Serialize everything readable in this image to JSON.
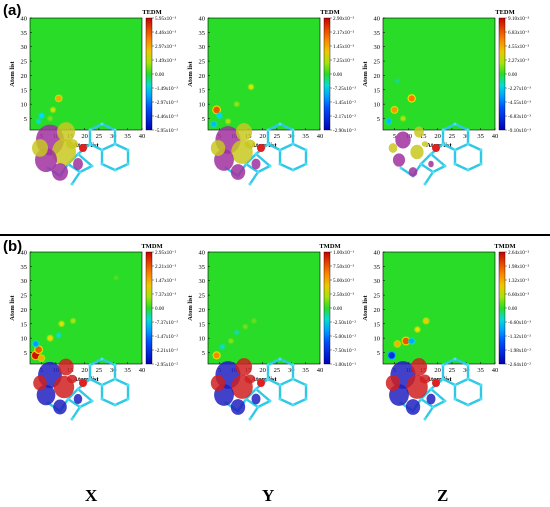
{
  "panels": {
    "a_label": "(a)",
    "b_label": "(b)"
  },
  "columns": [
    "X",
    "Y",
    "Z"
  ],
  "chart_data": [
    {
      "type": "heatmap",
      "panel": "(a)",
      "column": "X",
      "title": "TEDM",
      "xlabel": "Atom list",
      "ylabel": "Atom list",
      "xticks": [
        "5",
        "10",
        "15",
        "20",
        "25",
        "30",
        "35",
        "40"
      ],
      "yticks": [
        "5",
        "10",
        "15",
        "20",
        "25",
        "30",
        "35",
        "40"
      ],
      "xlim": [
        1,
        40
      ],
      "ylim": [
        1,
        40
      ],
      "colorbar_labels": [
        "5.95x10⁻³",
        "4.46x10⁻³",
        "2.97x10⁻³",
        "1.49x10⁻³",
        "0.00",
        "-1.49x10⁻³",
        "-2.97x10⁻³",
        "-4.46x10⁻³",
        "-5.95x10⁻³"
      ],
      "zlim": [
        -0.00595,
        0.00595
      ],
      "spots": [
        {
          "x": 11,
          "y": 12,
          "z": 0.003
        },
        {
          "x": 9,
          "y": 8,
          "z": 0.0015
        },
        {
          "x": 5,
          "y": 6,
          "z": -0.0015
        },
        {
          "x": 4,
          "y": 4,
          "z": -0.0012
        },
        {
          "x": 8,
          "y": 5,
          "z": 0.0008
        }
      ]
    },
    {
      "type": "heatmap",
      "panel": "(a)",
      "column": "Y",
      "title": "TEDM",
      "xlabel": "Atom list",
      "ylabel": "Atom list",
      "xticks": [
        "5",
        "10",
        "15",
        "20",
        "25",
        "30",
        "35",
        "40"
      ],
      "yticks": [
        "5",
        "10",
        "15",
        "20",
        "25",
        "30",
        "35",
        "40"
      ],
      "xlim": [
        1,
        40
      ],
      "ylim": [
        1,
        40
      ],
      "colorbar_labels": [
        "2.90x10⁻²",
        "2.17x10⁻²",
        "1.45x10⁻²",
        "7.25x10⁻³",
        "0.00",
        "-7.25x10⁻³",
        "-1.45x10⁻²",
        "-2.17x10⁻²",
        "-2.90x10⁻²"
      ],
      "zlim": [
        -0.029,
        0.029
      ],
      "spots": [
        {
          "x": 4,
          "y": 8,
          "z": 0.022
        },
        {
          "x": 5,
          "y": 6,
          "z": -0.008
        },
        {
          "x": 8,
          "y": 4,
          "z": 0.006
        },
        {
          "x": 11,
          "y": 10,
          "z": 0.005
        },
        {
          "x": 16,
          "y": 16,
          "z": 0.008
        },
        {
          "x": 3,
          "y": 3,
          "z": -0.01
        }
      ]
    },
    {
      "type": "heatmap",
      "panel": "(a)",
      "column": "Z",
      "title": "TEDM",
      "xlabel": "Atom list",
      "ylabel": "Atom list",
      "xticks": [
        "5",
        "10",
        "15",
        "20",
        "25",
        "30",
        "35",
        "40"
      ],
      "yticks": [
        "5",
        "10",
        "15",
        "20",
        "25",
        "30",
        "35",
        "40"
      ],
      "xlim": [
        1,
        40
      ],
      "ylim": [
        1,
        40
      ],
      "colorbar_labels": [
        "9.10x10⁻³",
        "6.83x10⁻³",
        "4.55x10⁻³",
        "2.27x10⁻³",
        "0.00",
        "-2.27x10⁻³",
        "-4.55x10⁻³",
        "-6.83x10⁻³",
        "-9.10x10⁻³"
      ],
      "zlim": [
        -0.0091,
        0.0091
      ],
      "spots": [
        {
          "x": 5,
          "y": 8,
          "z": 0.005
        },
        {
          "x": 11,
          "y": 12,
          "z": 0.006
        },
        {
          "x": 3,
          "y": 4,
          "z": -0.003
        },
        {
          "x": 8,
          "y": 5,
          "z": 0.002
        },
        {
          "x": 6,
          "y": 18,
          "z": -0.001
        }
      ]
    },
    {
      "type": "heatmap",
      "panel": "(b)",
      "column": "X",
      "title": "TMDM",
      "xlabel": "Atom list",
      "ylabel": "Atom list",
      "xticks": [
        "5",
        "10",
        "15",
        "20",
        "25",
        "30",
        "35",
        "40"
      ],
      "yticks": [
        "5",
        "10",
        "15",
        "20",
        "25",
        "30",
        "35",
        "40"
      ],
      "xlim": [
        1,
        40
      ],
      "ylim": [
        1,
        40
      ],
      "colorbar_labels": [
        "2.95x10⁻²",
        "2.21x10⁻²",
        "1.47x10⁻²",
        "7.37x10⁻³",
        "0.00",
        "-7.37x10⁻³",
        "-1.47x10⁻²",
        "-2.21x10⁻²",
        "-2.95x10⁻²"
      ],
      "zlim": [
        -0.0295,
        0.0295
      ],
      "spots": [
        {
          "x": 3,
          "y": 4,
          "z": 0.028
        },
        {
          "x": 4,
          "y": 6,
          "z": 0.022
        },
        {
          "x": 5,
          "y": 3,
          "z": 0.014
        },
        {
          "x": 3,
          "y": 8,
          "z": -0.012
        },
        {
          "x": 8,
          "y": 10,
          "z": 0.01
        },
        {
          "x": 11,
          "y": 11,
          "z": -0.006
        },
        {
          "x": 12,
          "y": 15,
          "z": 0.008
        },
        {
          "x": 16,
          "y": 16,
          "z": 0.006
        },
        {
          "x": 31,
          "y": 31,
          "z": 0.002
        }
      ]
    },
    {
      "type": "heatmap",
      "panel": "(b)",
      "column": "Y",
      "title": "TMDM",
      "xlabel": "Atom list",
      "ylabel": "Atom list",
      "xticks": [
        "5",
        "10",
        "15",
        "20",
        "25",
        "30",
        "35",
        "40"
      ],
      "yticks": [
        "5",
        "10",
        "15",
        "20",
        "25",
        "30",
        "35",
        "40"
      ],
      "xlim": [
        1,
        40
      ],
      "ylim": [
        1,
        40
      ],
      "colorbar_labels": [
        "1.00x10⁻¹",
        "7.50x10⁻²",
        "5.00x10⁻²",
        "2.50x10⁻²",
        "0.00",
        "-2.50x10⁻²",
        "-5.00x10⁻²",
        "-7.50x10⁻²",
        "-1.00x10⁻¹"
      ],
      "zlim": [
        -0.1,
        0.1
      ],
      "spots": [
        {
          "x": 4,
          "y": 4,
          "z": 0.06
        },
        {
          "x": 6,
          "y": 7,
          "z": -0.02
        },
        {
          "x": 9,
          "y": 9,
          "z": 0.015
        },
        {
          "x": 11,
          "y": 12,
          "z": -0.015
        },
        {
          "x": 14,
          "y": 14,
          "z": 0.012
        },
        {
          "x": 17,
          "y": 16,
          "z": 0.01
        }
      ]
    },
    {
      "type": "heatmap",
      "panel": "(b)",
      "column": "Z",
      "title": "TMDM",
      "xlabel": "Atom list",
      "ylabel": "Atom list",
      "xticks": [
        "5",
        "10",
        "15",
        "20",
        "25",
        "30",
        "35",
        "40"
      ],
      "yticks": [
        "5",
        "10",
        "15",
        "20",
        "25",
        "30",
        "35",
        "40"
      ],
      "xlim": [
        1,
        40
      ],
      "ylim": [
        1,
        40
      ],
      "colorbar_labels": [
        "2.64x10⁻²",
        "1.98x10⁻²",
        "1.32x10⁻²",
        "6.60x10⁻³",
        "0.00",
        "-6.60x10⁻³",
        "-1.32x10⁻²",
        "-1.98x10⁻²",
        "-2.64x10⁻²"
      ],
      "zlim": [
        -0.0264,
        0.0264
      ],
      "spots": [
        {
          "x": 4,
          "y": 4,
          "z": -0.02
        },
        {
          "x": 6,
          "y": 8,
          "z": 0.012
        },
        {
          "x": 9,
          "y": 9,
          "z": 0.02
        },
        {
          "x": 11,
          "y": 9,
          "z": -0.01
        },
        {
          "x": 13,
          "y": 13,
          "z": 0.008
        },
        {
          "x": 16,
          "y": 16,
          "z": 0.01
        }
      ]
    }
  ]
}
